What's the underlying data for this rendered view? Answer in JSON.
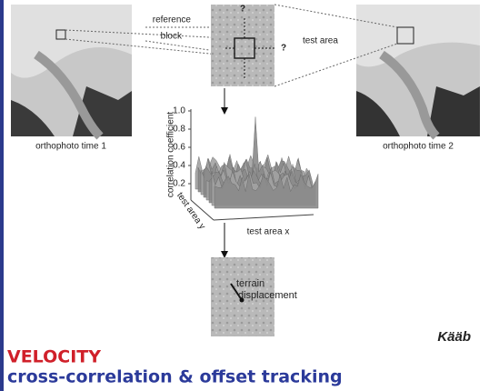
{
  "labels": {
    "reference": [
      "reference",
      "block"
    ],
    "test_area": "test area",
    "ortho_1": "orthophoto time 1",
    "ortho_2": "orthophoto time 2",
    "question_marks": [
      "?",
      "?"
    ],
    "terrain": [
      "terrain",
      "displacement"
    ]
  },
  "plot": {
    "y_axis_label": "correlation coefficient",
    "y_ticks": [
      "1.0",
      "0.8",
      "0.6",
      "0.4",
      "0.2"
    ],
    "depth_label": "test area y",
    "x_axis_label": "test area x"
  },
  "credit": "Kääb",
  "footer": {
    "title": "VELOCITY",
    "subtitle": "cross-correlation & offset tracking"
  }
}
